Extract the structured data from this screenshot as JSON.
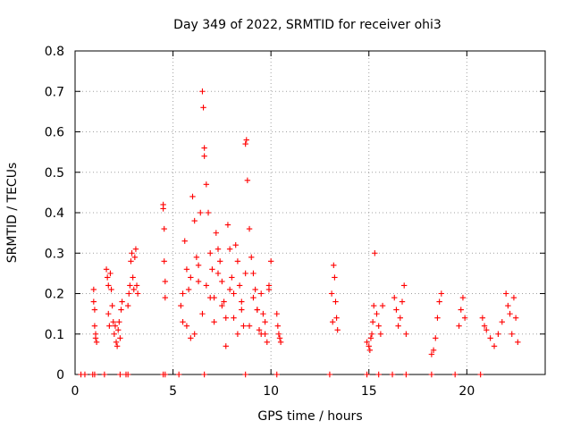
{
  "chart_data": {
    "type": "scatter",
    "title": "Day 349 of 2022, SRMTID for receiver ohi3",
    "xlabel": "GPS time / hours",
    "ylabel": "SRMTID / TECUs",
    "xlim": [
      0,
      24
    ],
    "ylim": [
      0,
      0.8
    ],
    "xticks": [
      0,
      5,
      10,
      15,
      20
    ],
    "xtick_labels": [
      "0",
      "5",
      "10",
      "15",
      "20"
    ],
    "yticks": [
      0,
      0.1,
      0.2,
      0.3,
      0.4,
      0.5,
      0.6,
      0.7,
      0.8
    ],
    "ytick_labels": [
      "0",
      "0.1",
      "0.2",
      "0.3",
      "0.4",
      "0.5",
      "0.6",
      "0.7",
      "0.8"
    ],
    "grid": true,
    "marker": "+",
    "color": "#ff0000",
    "series": [
      {
        "name": "SRMTID",
        "x": [
          0.3,
          0.5,
          0.9,
          1.0,
          1.5,
          2.3,
          2.6,
          2.7,
          4.5,
          4.6,
          5.3,
          6.6,
          8.7,
          10.3,
          13.0,
          14.9,
          15.5,
          16.2,
          16.9,
          18.2,
          19.4,
          20.7,
          0.95,
          0.95,
          1.0,
          1.0,
          1.05,
          1.05,
          1.1,
          1.6,
          1.65,
          1.7,
          1.7,
          1.75,
          1.8,
          1.85,
          1.9,
          1.95,
          2.0,
          2.05,
          2.1,
          2.15,
          2.2,
          2.25,
          2.3,
          2.35,
          2.4,
          2.7,
          2.75,
          2.8,
          2.85,
          2.9,
          2.95,
          3.0,
          3.05,
          3.1,
          3.15,
          3.2,
          4.5,
          4.5,
          4.55,
          4.55,
          4.6,
          4.6,
          5.4,
          5.5,
          5.6,
          5.7,
          5.8,
          5.9,
          6.0,
          6.1,
          6.2,
          6.3,
          6.4,
          6.5,
          6.55,
          6.6,
          6.6,
          6.7,
          6.8,
          6.9,
          7.0,
          7.1,
          7.2,
          7.3,
          7.4,
          7.5,
          7.6,
          7.7,
          7.8,
          7.9,
          8.0,
          8.1,
          8.2,
          8.3,
          8.4,
          8.5,
          8.6,
          8.7,
          8.75,
          8.8,
          8.9,
          9.0,
          9.1,
          9.2,
          9.3,
          9.4,
          9.5,
          9.6,
          9.7,
          9.8,
          9.9,
          10.0,
          5.5,
          5.7,
          5.9,
          6.1,
          6.3,
          6.5,
          6.7,
          6.9,
          7.1,
          7.3,
          7.5,
          7.7,
          7.9,
          8.1,
          8.3,
          8.5,
          8.7,
          8.9,
          9.1,
          9.3,
          9.5,
          9.7,
          9.9,
          10.3,
          10.35,
          10.4,
          10.45,
          10.5,
          13.1,
          13.15,
          13.2,
          13.25,
          13.3,
          13.35,
          13.4,
          14.9,
          15.0,
          15.05,
          15.1,
          15.15,
          15.2,
          15.25,
          15.3,
          15.4,
          15.5,
          15.6,
          15.7,
          16.3,
          16.4,
          16.5,
          16.6,
          16.7,
          16.8,
          16.9,
          18.2,
          18.3,
          18.4,
          18.5,
          18.6,
          18.7,
          19.6,
          19.7,
          19.8,
          19.9,
          20.8,
          20.9,
          21.0,
          21.2,
          21.4,
          21.6,
          21.8,
          22.0,
          22.1,
          22.2,
          22.3,
          22.4,
          22.5,
          22.6
        ],
        "y": [
          0,
          0,
          0,
          0,
          0,
          0,
          0,
          0,
          0,
          0,
          0,
          0,
          0,
          0,
          0,
          0,
          0,
          0,
          0,
          0,
          0,
          0,
          0.21,
          0.18,
          0.16,
          0.12,
          0.1,
          0.09,
          0.08,
          0.26,
          0.24,
          0.22,
          0.15,
          0.12,
          0.25,
          0.21,
          0.17,
          0.13,
          0.1,
          0.12,
          0.08,
          0.07,
          0.11,
          0.13,
          0.09,
          0.16,
          0.18,
          0.17,
          0.2,
          0.22,
          0.28,
          0.3,
          0.24,
          0.21,
          0.29,
          0.31,
          0.22,
          0.2,
          0.42,
          0.41,
          0.36,
          0.28,
          0.23,
          0.19,
          0.17,
          0.13,
          0.33,
          0.26,
          0.21,
          0.09,
          0.44,
          0.38,
          0.29,
          0.23,
          0.4,
          0.7,
          0.66,
          0.56,
          0.54,
          0.47,
          0.4,
          0.3,
          0.26,
          0.19,
          0.35,
          0.31,
          0.28,
          0.23,
          0.18,
          0.14,
          0.37,
          0.31,
          0.24,
          0.2,
          0.32,
          0.28,
          0.22,
          0.16,
          0.12,
          0.57,
          0.58,
          0.48,
          0.36,
          0.29,
          0.25,
          0.21,
          0.16,
          0.11,
          0.2,
          0.15,
          0.1,
          0.08,
          0.22,
          0.28,
          0.2,
          0.12,
          0.24,
          0.1,
          0.27,
          0.15,
          0.22,
          0.19,
          0.13,
          0.25,
          0.17,
          0.07,
          0.21,
          0.14,
          0.1,
          0.18,
          0.25,
          0.12,
          0.19,
          0.16,
          0.1,
          0.13,
          0.21,
          0.15,
          0.12,
          0.1,
          0.09,
          0.08,
          0.2,
          0.13,
          0.27,
          0.24,
          0.18,
          0.14,
          0.11,
          0.08,
          0.07,
          0.06,
          0.09,
          0.1,
          0.13,
          0.17,
          0.3,
          0.15,
          0.12,
          0.1,
          0.17,
          0.19,
          0.16,
          0.12,
          0.14,
          0.18,
          0.22,
          0.1,
          0.05,
          0.06,
          0.09,
          0.14,
          0.18,
          0.2,
          0.12,
          0.16,
          0.19,
          0.14,
          0.14,
          0.12,
          0.11,
          0.09,
          0.07,
          0.1,
          0.13,
          0.2,
          0.17,
          0.15,
          0.1,
          0.19,
          0.14,
          0.08
        ]
      }
    ]
  }
}
